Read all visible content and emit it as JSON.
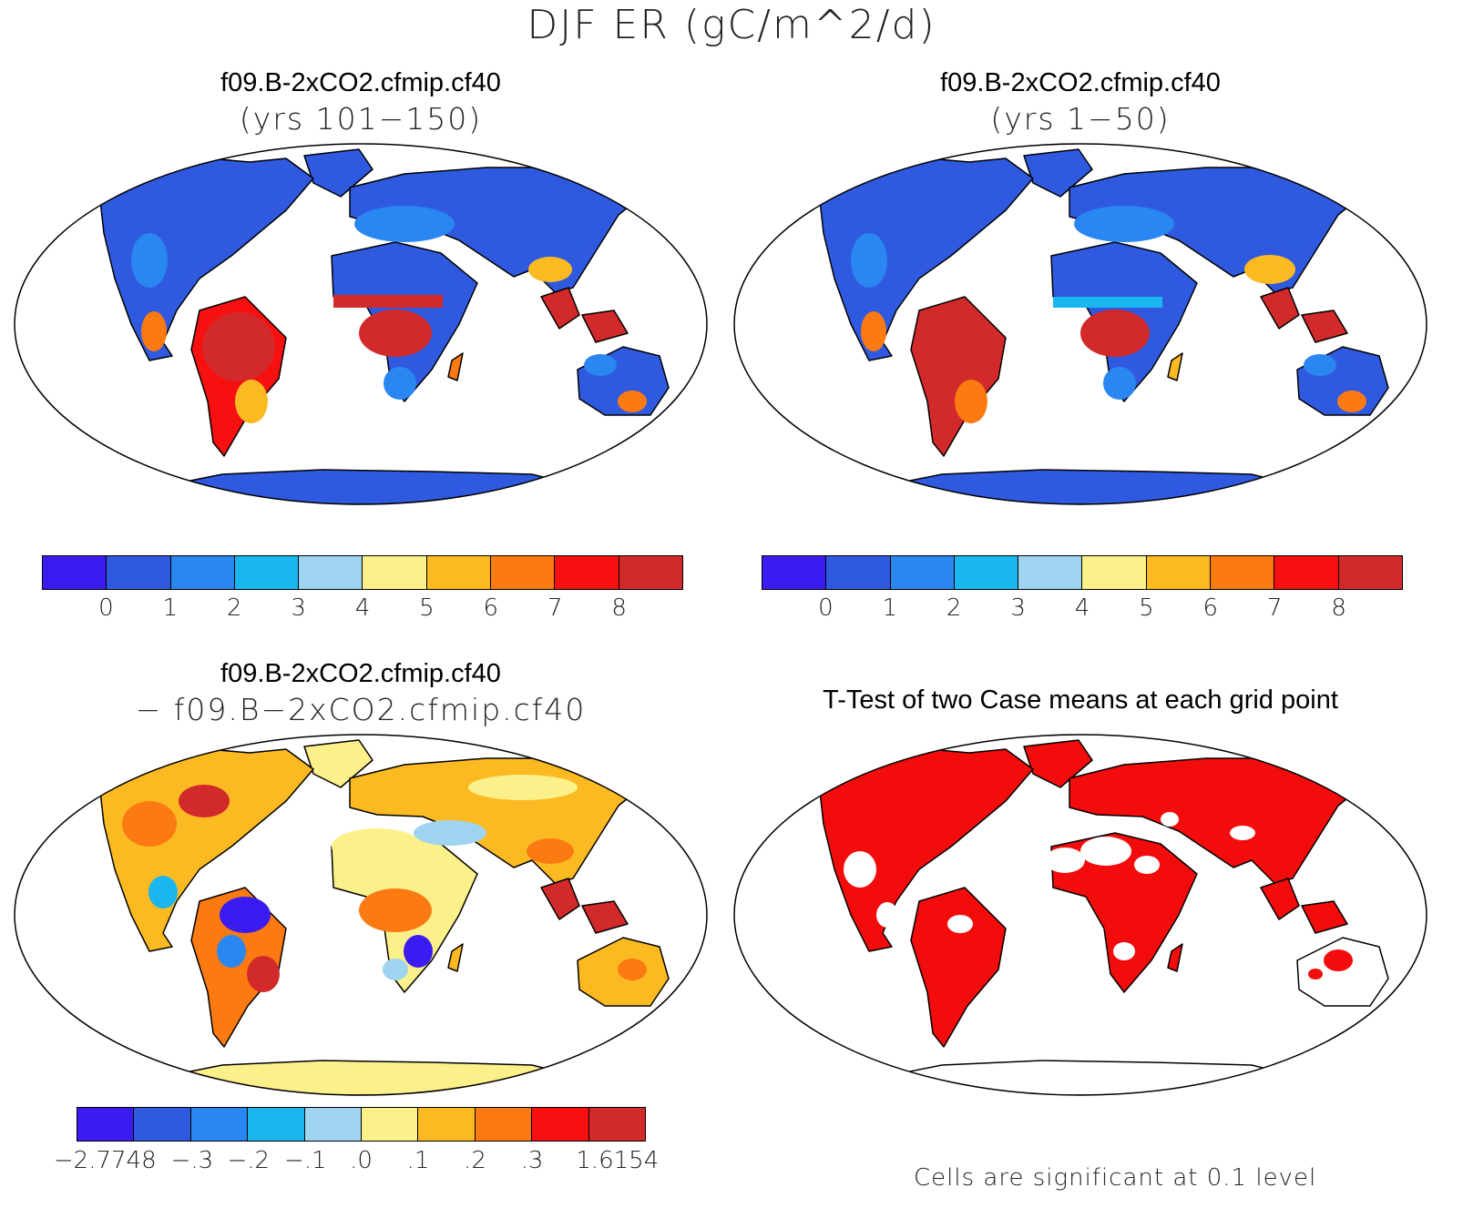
{
  "figure_title": "DJF ER (gC/m^2/d)",
  "panels": [
    {
      "title": "f09.B-2xCO2.cfmip.cf40",
      "subtitle": "(yrs 101−150)"
    },
    {
      "title": "f09.B-2xCO2.cfmip.cf40",
      "subtitle": "(yrs 1−50)"
    },
    {
      "title": "f09.B-2xCO2.cfmip.cf40",
      "subtitle": "− f09.B−2xCO2.cfmip.cf40"
    },
    {
      "title": "T-Test of two Case means at each grid point",
      "subtitle": ""
    }
  ],
  "colorbar_mean": {
    "colors": [
      "#3a1cf2",
      "#2f5ae0",
      "#2a86f0",
      "#1ab6f0",
      "#9fd4f0",
      "#fbf08a",
      "#fbba22",
      "#fb7a12",
      "#f71010",
      "#d22a2a"
    ],
    "labels": [
      "0",
      "1",
      "2",
      "3",
      "4",
      "5",
      "6",
      "7",
      "8"
    ]
  },
  "colorbar_diff": {
    "colors": [
      "#3a1cf2",
      "#2f5ae0",
      "#2a86f0",
      "#1ab6f0",
      "#9fd4f0",
      "#fbf08a",
      "#fbba22",
      "#fb7a12",
      "#f71010",
      "#d22a2a"
    ],
    "labels": [
      "−2.7748",
      "−.3",
      "−.2",
      "−.1",
      ".0",
      ".1",
      ".2",
      ".3",
      "1.6154"
    ]
  },
  "ttest_note": "Cells are significant at 0.1 level",
  "significance_color": "#f20c0c"
}
